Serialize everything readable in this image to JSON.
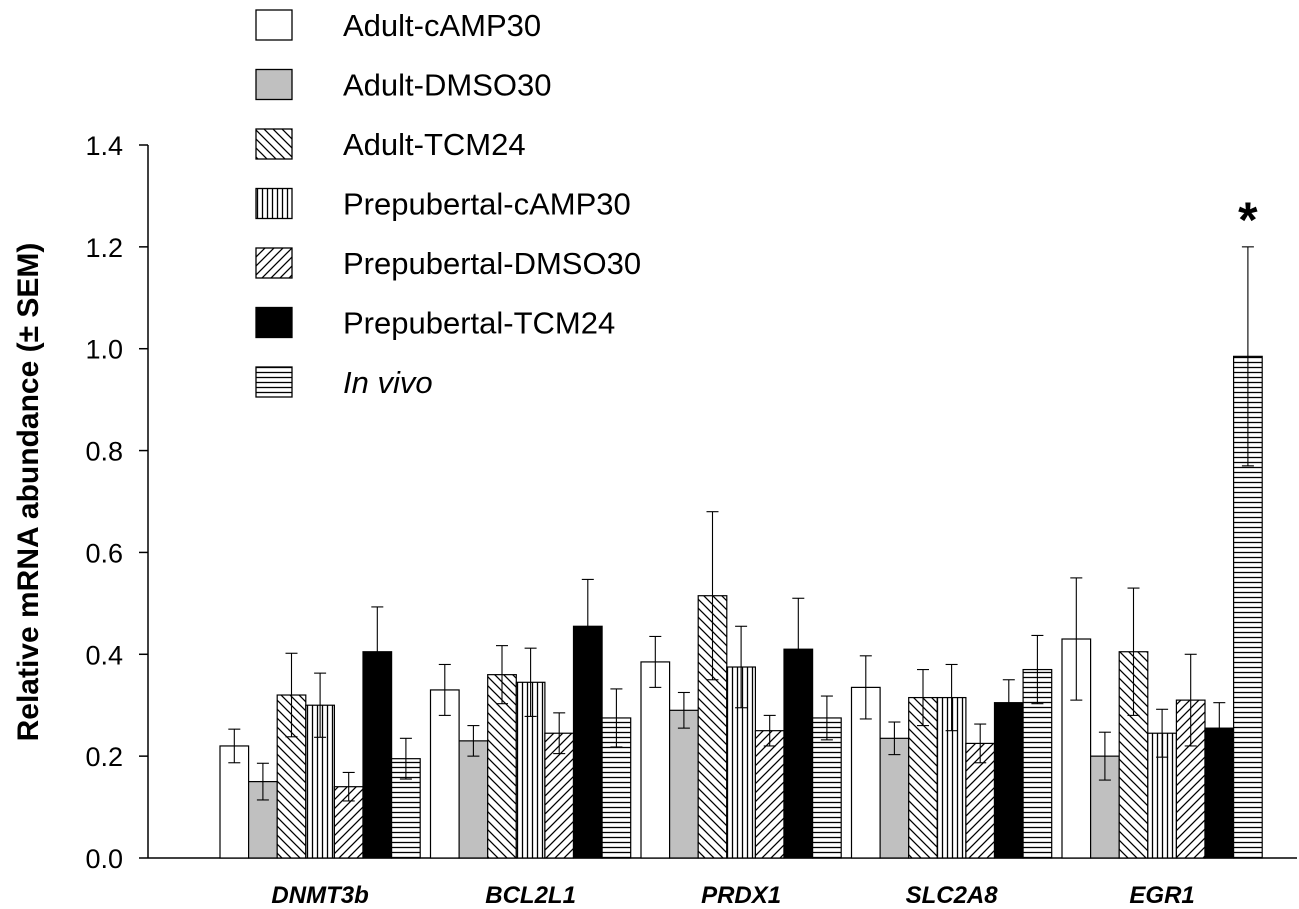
{
  "chart_data": {
    "type": "bar",
    "title": "",
    "xlabel": "",
    "ylabel": "Relative mRNA abundance (± SEM)",
    "ylim": [
      0,
      1.4
    ],
    "yticks": [
      "0.0",
      "0.2",
      "0.4",
      "0.6",
      "0.8",
      "1.0",
      "1.2",
      "1.4"
    ],
    "categories": [
      "DNMT3b",
      "BCL2L1",
      "PRDX1",
      "SLC2A8",
      "EGR1"
    ],
    "legend_position": "top-left",
    "grid": false,
    "series": [
      {
        "name": "Adult-cAMP30",
        "pattern": "white",
        "values": [
          0.22,
          0.33,
          0.385,
          0.335,
          0.43
        ],
        "errors": [
          0.033,
          0.05,
          0.05,
          0.062,
          0.12
        ]
      },
      {
        "name": "Adult-DMSO30",
        "pattern": "gray",
        "values": [
          0.15,
          0.23,
          0.29,
          0.235,
          0.2
        ],
        "errors": [
          0.036,
          0.03,
          0.035,
          0.032,
          0.047
        ]
      },
      {
        "name": "Adult-TCM24",
        "pattern": "back-diagonal",
        "values": [
          0.32,
          0.36,
          0.515,
          0.315,
          0.405
        ],
        "errors": [
          0.082,
          0.057,
          0.165,
          0.055,
          0.125
        ]
      },
      {
        "name": "Prepubertal-cAMP30",
        "pattern": "vertical",
        "values": [
          0.3,
          0.345,
          0.375,
          0.315,
          0.245
        ],
        "errors": [
          0.063,
          0.067,
          0.08,
          0.065,
          0.047
        ]
      },
      {
        "name": "Prepubertal-DMSO30",
        "pattern": "forward-diagonal",
        "values": [
          0.14,
          0.245,
          0.25,
          0.225,
          0.31
        ],
        "errors": [
          0.028,
          0.04,
          0.03,
          0.038,
          0.09
        ]
      },
      {
        "name": "Prepubertal-TCM24",
        "pattern": "black",
        "values": [
          0.405,
          0.455,
          0.41,
          0.305,
          0.255
        ],
        "errors": [
          0.088,
          0.092,
          0.1,
          0.045,
          0.05
        ]
      },
      {
        "name": "In vivo",
        "pattern": "horizontal",
        "italic": true,
        "values": [
          0.195,
          0.275,
          0.275,
          0.37,
          0.985
        ],
        "errors": [
          0.04,
          0.057,
          0.043,
          0.067,
          0.215
        ]
      }
    ],
    "annotations": [
      {
        "text": "*",
        "category": "EGR1",
        "series": "In vivo"
      }
    ]
  }
}
